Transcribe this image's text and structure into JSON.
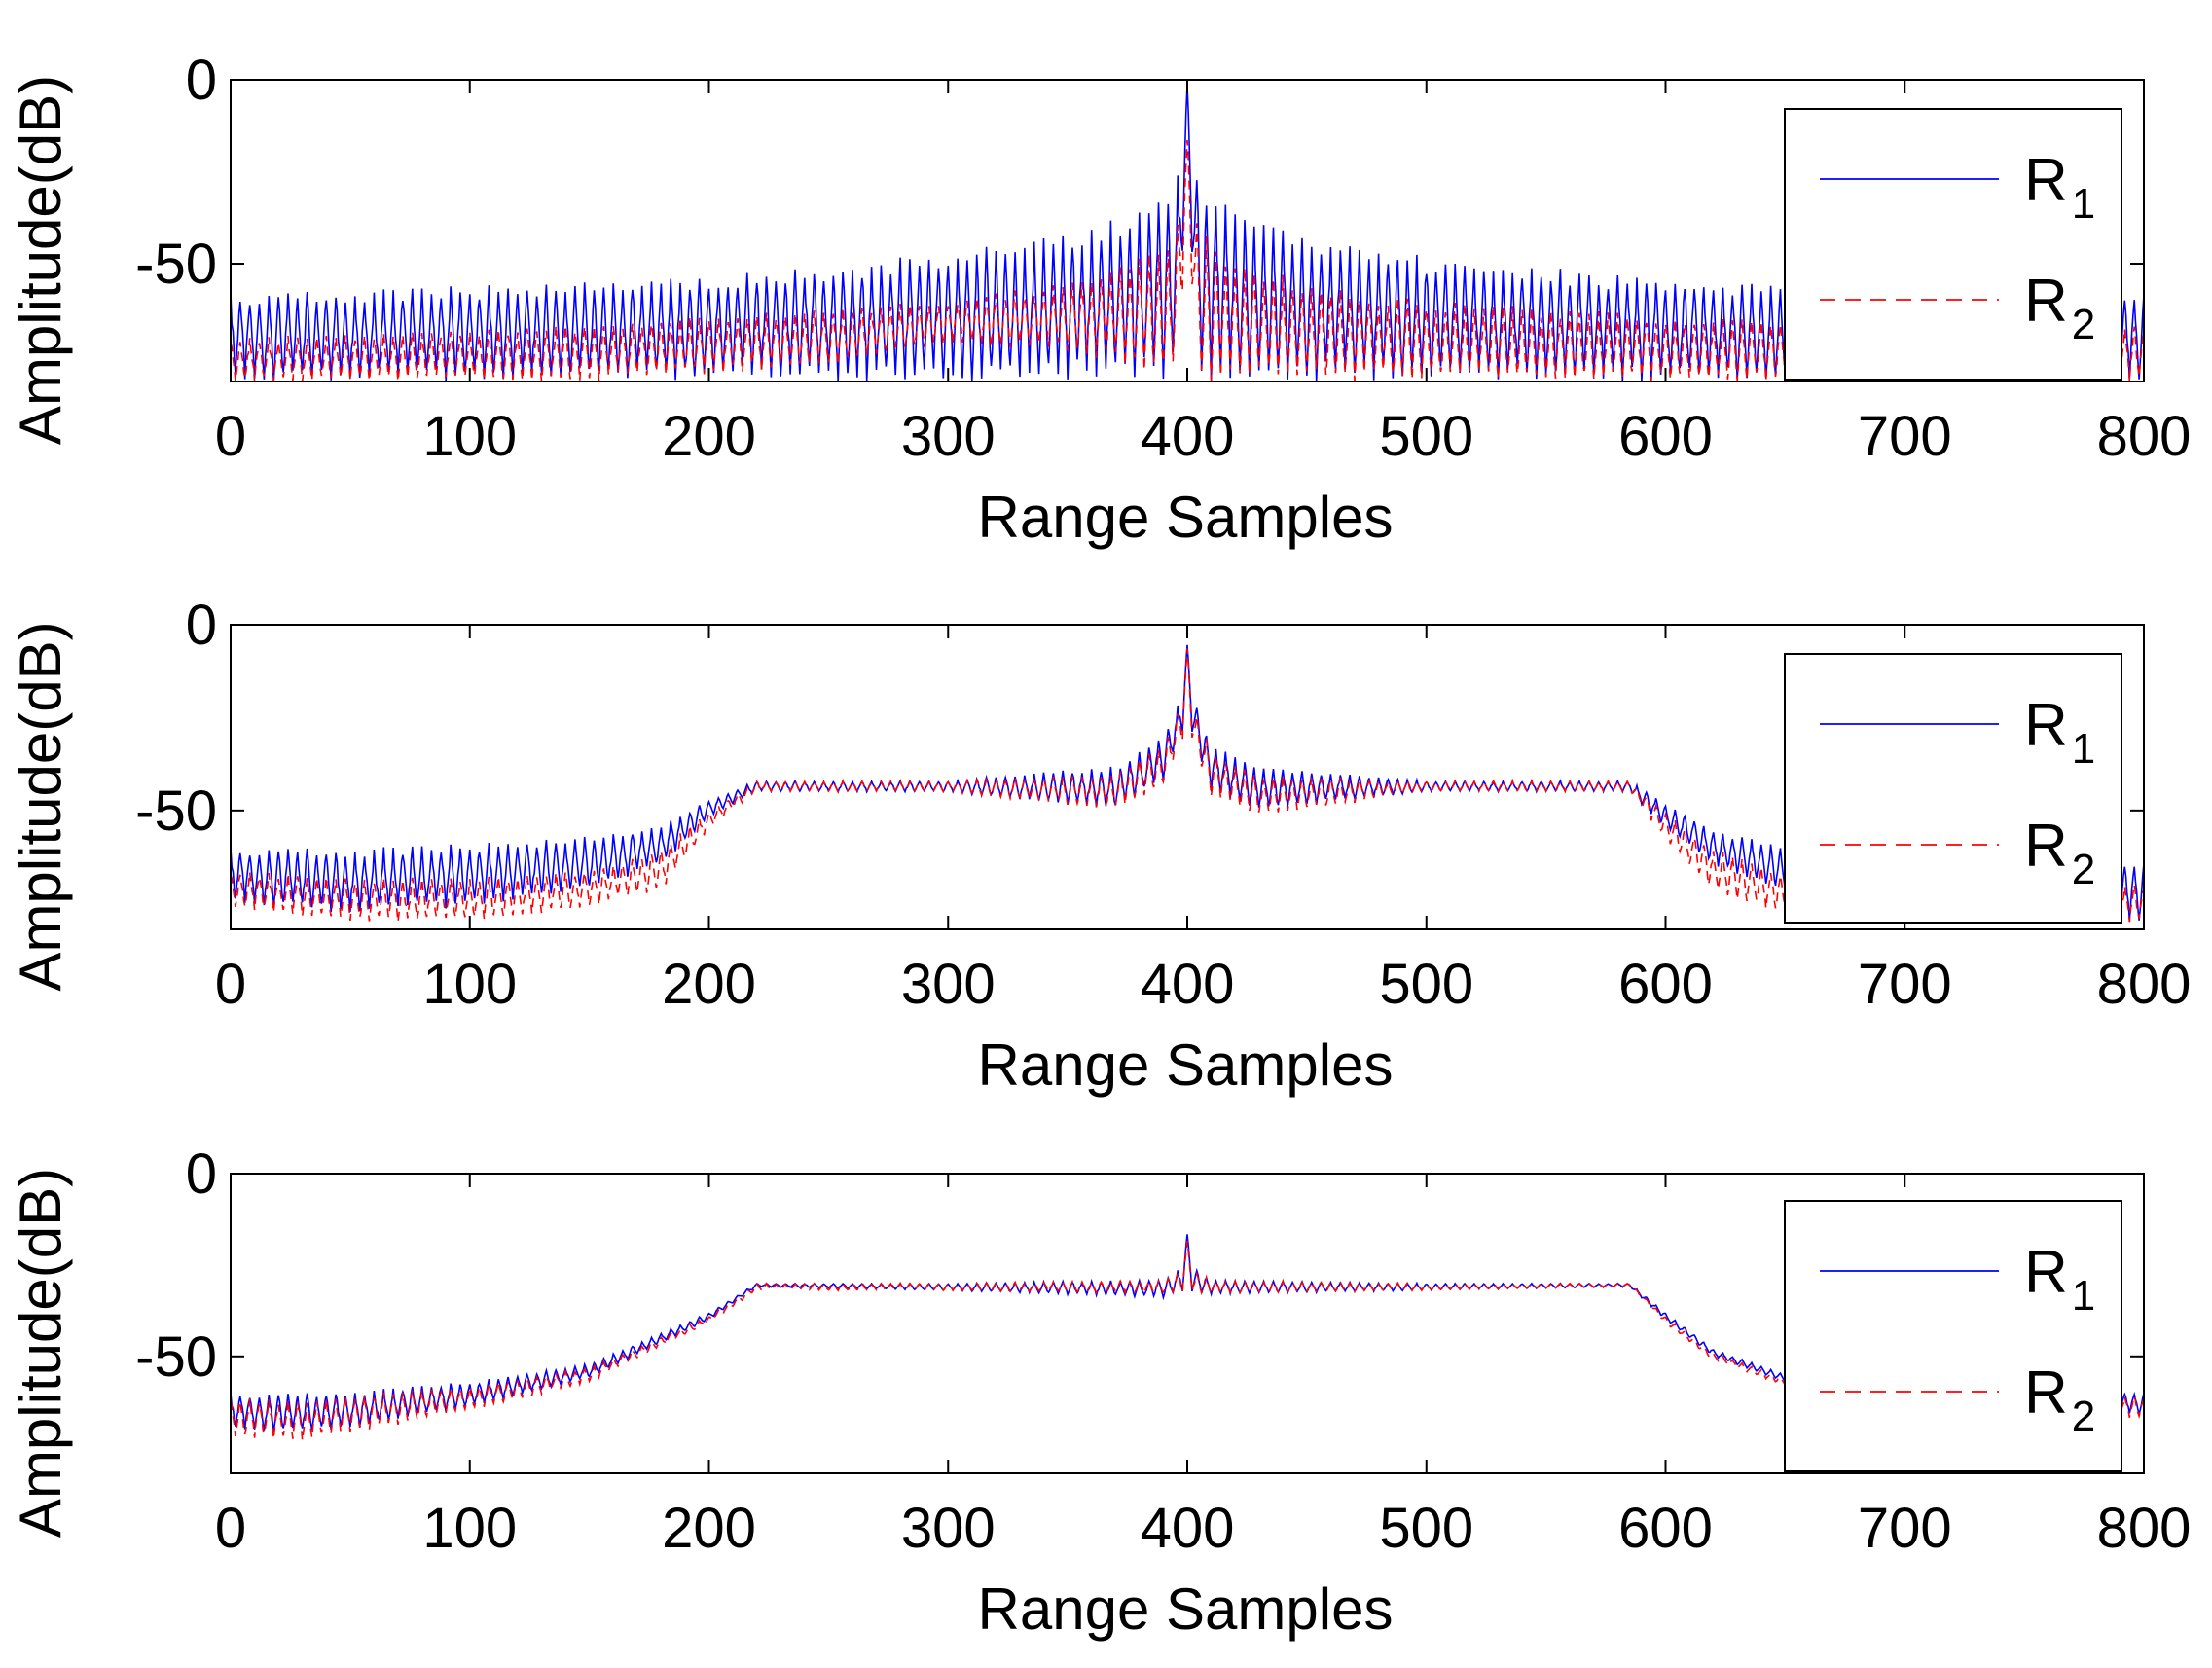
{
  "chart_data": [
    {
      "type": "line",
      "title": "",
      "xlabel": "Range Samples",
      "ylabel": "Amplitude(dB)",
      "xlim": [
        0,
        800
      ],
      "ylim": [
        -82,
        0
      ],
      "xticks": [
        "0",
        "100",
        "200",
        "300",
        "400",
        "500",
        "600",
        "700",
        "800"
      ],
      "yticks": [
        "0",
        "-50"
      ],
      "legend_position": "right",
      "series": [
        {
          "name": "R",
          "subscript": "1",
          "style": "solid",
          "color": "#0000ff",
          "x": [
            0,
            50,
            100,
            150,
            200,
            250,
            300,
            350,
            380,
            390,
            395,
            398,
            400,
            402,
            405,
            410,
            420,
            450,
            500,
            550,
            600,
            650,
            700,
            750,
            800
          ],
          "envelope_top": [
            -58,
            -57,
            -56,
            -55,
            -53,
            -50,
            -47,
            -42,
            -35,
            -31,
            -26,
            -17,
            0,
            -19,
            -26,
            -30,
            -34,
            -42,
            -48,
            -51,
            -54,
            -56,
            -57,
            -58,
            -58
          ],
          "envelope_bottom": [
            -82,
            -82,
            -82,
            -82,
            -82,
            -82,
            -82,
            -82,
            -82,
            -82,
            -82,
            -50,
            -10,
            -50,
            -82,
            -82,
            -82,
            -82,
            -82,
            -82,
            -82,
            -82,
            -82,
            -82,
            -82
          ]
        },
        {
          "name": "R",
          "subscript": "2",
          "style": "dashed",
          "color": "#ff0000",
          "x": [
            0,
            50,
            100,
            150,
            200,
            250,
            300,
            350,
            380,
            390,
            395,
            398,
            400,
            402,
            405,
            410,
            420,
            450,
            500,
            550,
            600,
            650,
            700,
            750,
            800
          ],
          "envelope_top": [
            -70,
            -69,
            -68,
            -66,
            -64,
            -62,
            -60,
            -55,
            -48,
            -44,
            -40,
            -28,
            -16,
            -28,
            -38,
            -44,
            -48,
            -55,
            -60,
            -62,
            -64,
            -65,
            -66,
            -67,
            -67
          ],
          "envelope_bottom": [
            -82,
            -82,
            -82,
            -82,
            -80,
            -78,
            -72,
            -74,
            -80,
            -82,
            -82,
            -60,
            -20,
            -60,
            -82,
            -82,
            -82,
            -82,
            -82,
            -82,
            -82,
            -82,
            -82,
            -82,
            -82
          ]
        }
      ]
    },
    {
      "type": "line",
      "title": "",
      "xlabel": "Range Samples",
      "ylabel": "Amplitude(dB)",
      "xlim": [
        0,
        800
      ],
      "ylim": [
        -82,
        0
      ],
      "xticks": [
        "0",
        "100",
        "200",
        "300",
        "400",
        "500",
        "600",
        "700",
        "800"
      ],
      "yticks": [
        "0",
        "-50"
      ],
      "legend_position": "right",
      "series": [
        {
          "name": "R",
          "subscript": "1",
          "style": "solid",
          "color": "#0000ff",
          "x": [
            0,
            50,
            100,
            150,
            180,
            200,
            220,
            300,
            370,
            390,
            398,
            400,
            402,
            410,
            430,
            500,
            585,
            600,
            620,
            650,
            700,
            750,
            800
          ],
          "envelope_top": [
            -60,
            -60,
            -59,
            -57,
            -54,
            -47,
            -42,
            -42,
            -38,
            -30,
            -18,
            -5,
            -18,
            -32,
            -38,
            -42,
            -42,
            -48,
            -55,
            -60,
            -63,
            -63,
            -64
          ],
          "envelope_bottom": [
            -75,
            -78,
            -76,
            -72,
            -65,
            -52,
            -45,
            -45,
            -50,
            -42,
            -30,
            -8,
            -30,
            -45,
            -50,
            -45,
            -45,
            -55,
            -65,
            -72,
            -78,
            -80,
            -80
          ]
        },
        {
          "name": "R",
          "subscript": "2",
          "style": "dashed",
          "color": "#ff0000",
          "x": [
            0,
            50,
            100,
            150,
            180,
            200,
            220,
            300,
            370,
            390,
            398,
            400,
            402,
            410,
            430,
            500,
            585,
            600,
            620,
            650,
            700,
            750,
            800
          ],
          "envelope_top": [
            -66,
            -68,
            -68,
            -66,
            -60,
            -50,
            -42,
            -42,
            -40,
            -32,
            -20,
            -6,
            -20,
            -34,
            -40,
            -42,
            -42,
            -50,
            -60,
            -67,
            -70,
            -70,
            -70
          ],
          "envelope_bottom": [
            -76,
            -80,
            -80,
            -76,
            -72,
            -55,
            -45,
            -45,
            -50,
            -44,
            -32,
            -10,
            -32,
            -46,
            -52,
            -45,
            -45,
            -58,
            -72,
            -78,
            -80,
            -80,
            -80
          ]
        }
      ]
    },
    {
      "type": "line",
      "title": "",
      "xlabel": "Range Samples",
      "ylabel": "Amplitude(dB)",
      "xlim": [
        0,
        800
      ],
      "ylim": [
        -82,
        0
      ],
      "xticks": [
        "0",
        "100",
        "200",
        "300",
        "400",
        "500",
        "600",
        "700",
        "800"
      ],
      "yticks": [
        "0",
        "-50"
      ],
      "legend_position": "right",
      "series": [
        {
          "name": "R",
          "subscript": "1",
          "style": "solid",
          "color": "#0000ff",
          "x": [
            0,
            30,
            60,
            100,
            150,
            200,
            220,
            300,
            390,
            398,
            400,
            402,
            410,
            500,
            585,
            600,
            620,
            650,
            700,
            750,
            800
          ],
          "envelope_top": [
            -60,
            -60,
            -59,
            -57,
            -52,
            -38,
            -30,
            -30,
            -29,
            -25,
            -16,
            -25,
            -29,
            -30,
            -30,
            -38,
            -48,
            -55,
            -58,
            -59,
            -60
          ],
          "envelope_bottom": [
            -70,
            -71,
            -69,
            -64,
            -56,
            -40,
            -31,
            -32,
            -34,
            -33,
            -20,
            -33,
            -33,
            -32,
            -31,
            -40,
            -50,
            -57,
            -62,
            -64,
            -66
          ]
        },
        {
          "name": "R",
          "subscript": "2",
          "style": "dashed",
          "color": "#ff0000",
          "x": [
            0,
            30,
            60,
            100,
            150,
            200,
            220,
            300,
            390,
            398,
            400,
            402,
            410,
            500,
            585,
            600,
            620,
            650,
            700,
            750,
            800
          ],
          "envelope_top": [
            -61,
            -62,
            -60,
            -58,
            -53,
            -39,
            -30,
            -30,
            -29,
            -26,
            -18,
            -26,
            -29,
            -30,
            -30,
            -39,
            -49,
            -56,
            -59,
            -60,
            -61
          ],
          "envelope_bottom": [
            -72,
            -73,
            -70,
            -65,
            -57,
            -41,
            -32,
            -32,
            -33,
            -33,
            -22,
            -33,
            -33,
            -32,
            -31,
            -41,
            -51,
            -58,
            -63,
            -65,
            -67
          ]
        }
      ]
    }
  ]
}
